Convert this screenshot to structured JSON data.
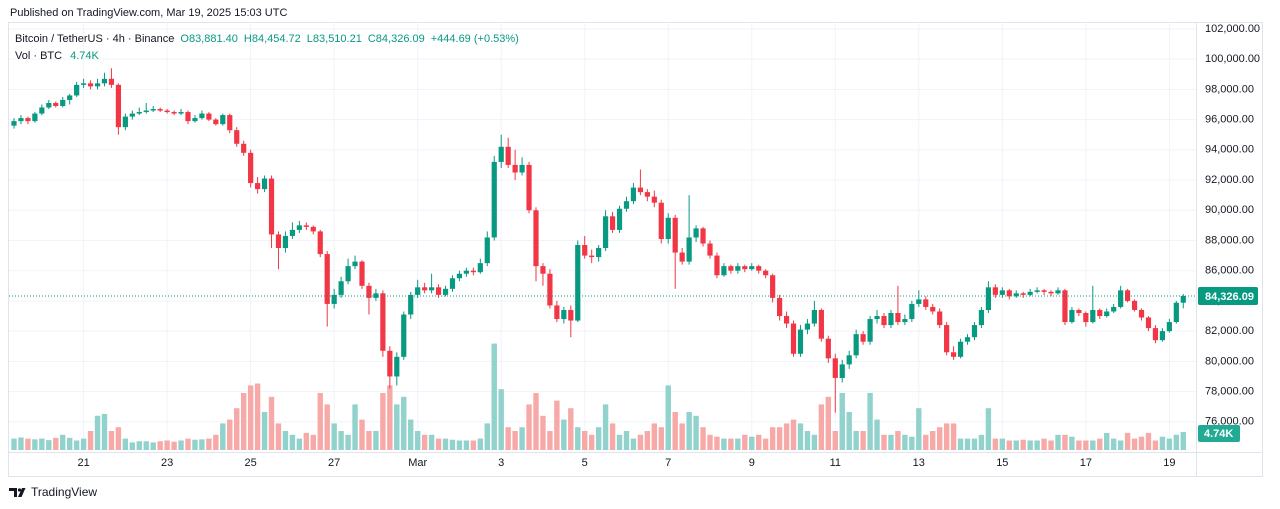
{
  "header": {
    "published": "Published on TradingView.com, Mar 19, 2025 15:03 UTC"
  },
  "footer": {
    "brand": "TradingView"
  },
  "chart_data": {
    "type": "candlestick",
    "legend": {
      "symbol": "Bitcoin / TetherUS · 4h · Binance",
      "open": "O83,881.40",
      "high": "H84,454.72",
      "low": "L83,510.21",
      "close": "C84,326.09",
      "change": "+444.69 (+0.53%)",
      "volume_title": "Vol · BTC",
      "volume_value": "4.74K"
    },
    "up_color": "#089981",
    "down_color": "#f23645",
    "volume_up_color": "#92d2cc",
    "volume_down_color": "#f7a9a7",
    "ylim": [
      74000,
      102460
    ],
    "yticks": [
      {
        "value": 76000,
        "label": "76,000.00"
      },
      {
        "value": 78000,
        "label": "78,000.00"
      },
      {
        "value": 80000,
        "label": "80,000.00"
      },
      {
        "value": 82000,
        "label": "82,000.00"
      },
      {
        "value": 84000,
        "label": "84,000.00"
      },
      {
        "value": 86000,
        "label": "86,000.00"
      },
      {
        "value": 88000,
        "label": "88,000.00"
      },
      {
        "value": 90000,
        "label": "90,000.00"
      },
      {
        "value": 92000,
        "label": "92,000.00"
      },
      {
        "value": 94000,
        "label": "94,000.00"
      },
      {
        "value": 96000,
        "label": "96,000.00"
      },
      {
        "value": 98000,
        "label": "98,000.00"
      },
      {
        "value": 100000,
        "label": "100,000.00"
      },
      {
        "value": 102000,
        "label": "102,000.00"
      }
    ],
    "xtick_labels": [
      "21",
      "23",
      "25",
      "27",
      "Mar",
      "3",
      "5",
      "7",
      "9",
      "11",
      "13",
      "15",
      "17",
      "19"
    ],
    "grid": true,
    "last_price": {
      "value": 84326.09,
      "label": "84,326.09"
    },
    "last_volume_label": "4.74K",
    "ohlc": [
      [
        95600,
        96100,
        95400,
        95900
      ],
      [
        95900,
        96300,
        95700,
        96100
      ],
      [
        96100,
        96200,
        95700,
        95900
      ],
      [
        95900,
        96500,
        95800,
        96400
      ],
      [
        96400,
        97000,
        96300,
        96800
      ],
      [
        96800,
        97300,
        96700,
        97100
      ],
      [
        97100,
        97200,
        96800,
        96900
      ],
      [
        96900,
        97500,
        96800,
        97300
      ],
      [
        97300,
        97700,
        97000,
        97600
      ],
      [
        97600,
        98500,
        97500,
        98300
      ],
      [
        98300,
        98700,
        98100,
        98400
      ],
      [
        98400,
        98600,
        98000,
        98200
      ],
      [
        98200,
        98700,
        98000,
        98400
      ],
      [
        98400,
        99100,
        98200,
        98700
      ],
      [
        98700,
        99400,
        98100,
        98300
      ],
      [
        98300,
        98400,
        95000,
        95500
      ],
      [
        95500,
        96400,
        95300,
        96200
      ],
      [
        96200,
        96600,
        96000,
        96400
      ],
      [
        96400,
        96800,
        96300,
        96500
      ],
      [
        96500,
        97100,
        96400,
        96600
      ],
      [
        96600,
        96900,
        96500,
        96700
      ],
      [
        96700,
        96800,
        96500,
        96600
      ],
      [
        96600,
        96700,
        96400,
        96500
      ],
      [
        96500,
        96600,
        96300,
        96400
      ],
      [
        96400,
        96700,
        96300,
        96500
      ],
      [
        96500,
        96600,
        95700,
        95900
      ],
      [
        95900,
        96300,
        95800,
        96100
      ],
      [
        96100,
        96600,
        96000,
        96400
      ],
      [
        96400,
        96500,
        95900,
        96000
      ],
      [
        96000,
        96100,
        95600,
        95700
      ],
      [
        95700,
        96400,
        95600,
        96300
      ],
      [
        96300,
        96400,
        95100,
        95300
      ],
      [
        95300,
        95500,
        94200,
        94400
      ],
      [
        94400,
        94600,
        93600,
        93800
      ],
      [
        93800,
        94000,
        91500,
        91800
      ],
      [
        91800,
        92200,
        91100,
        91400
      ],
      [
        91400,
        92300,
        91200,
        92100
      ],
      [
        92100,
        92300,
        87500,
        88400
      ],
      [
        88400,
        88600,
        86100,
        87500
      ],
      [
        87500,
        88600,
        87200,
        88300
      ],
      [
        88300,
        89200,
        88100,
        88700
      ],
      [
        88700,
        89300,
        88500,
        89000
      ],
      [
        89000,
        89200,
        88700,
        88900
      ],
      [
        88900,
        89000,
        88400,
        88600
      ],
      [
        88600,
        88700,
        86900,
        87100
      ],
      [
        87100,
        87300,
        82300,
        83800
      ],
      [
        83800,
        84800,
        83500,
        84400
      ],
      [
        84400,
        85600,
        84200,
        85300
      ],
      [
        85300,
        86800,
        85100,
        86300
      ],
      [
        86300,
        87000,
        86100,
        86600
      ],
      [
        86600,
        86700,
        84800,
        85000
      ],
      [
        85000,
        85200,
        83100,
        84200
      ],
      [
        84200,
        84800,
        84000,
        84500
      ],
      [
        84500,
        84700,
        80300,
        80700
      ],
      [
        80700,
        81000,
        78200,
        79000
      ],
      [
        79000,
        80600,
        78400,
        80300
      ],
      [
        80300,
        83300,
        80100,
        83100
      ],
      [
        83100,
        84600,
        82800,
        84400
      ],
      [
        84400,
        85400,
        84200,
        84900
      ],
      [
        84900,
        85200,
        84500,
        84700
      ],
      [
        84700,
        85800,
        84500,
        84900
      ],
      [
        84900,
        85100,
        84200,
        84400
      ],
      [
        84400,
        85000,
        84300,
        84800
      ],
      [
        84800,
        85700,
        84600,
        85500
      ],
      [
        85500,
        86000,
        85300,
        85800
      ],
      [
        85800,
        86200,
        85600,
        86000
      ],
      [
        86000,
        86200,
        85700,
        85900
      ],
      [
        85900,
        86800,
        85800,
        86500
      ],
      [
        86500,
        88600,
        86300,
        88200
      ],
      [
        88200,
        93600,
        88000,
        93200
      ],
      [
        93200,
        95000,
        92800,
        94200
      ],
      [
        94200,
        94800,
        92800,
        93000
      ],
      [
        93000,
        94000,
        92000,
        92500
      ],
      [
        92500,
        93500,
        92300,
        93000
      ],
      [
        93000,
        93200,
        89800,
        90000
      ],
      [
        90000,
        90200,
        85300,
        86300
      ],
      [
        86300,
        86500,
        85000,
        85800
      ],
      [
        85800,
        86100,
        83500,
        83700
      ],
      [
        83700,
        84000,
        82600,
        82800
      ],
      [
        82800,
        83600,
        82500,
        83400
      ],
      [
        83400,
        83700,
        81600,
        82700
      ],
      [
        82700,
        88000,
        82600,
        87700
      ],
      [
        87700,
        88300,
        86800,
        87000
      ],
      [
        87000,
        87400,
        86500,
        86900
      ],
      [
        86900,
        87700,
        86600,
        87500
      ],
      [
        87500,
        90000,
        87300,
        89600
      ],
      [
        89600,
        89900,
        88500,
        88700
      ],
      [
        88700,
        90300,
        88500,
        90100
      ],
      [
        90100,
        90900,
        89900,
        90600
      ],
      [
        90600,
        91800,
        90400,
        91500
      ],
      [
        91500,
        92700,
        91000,
        91200
      ],
      [
        91200,
        91400,
        90600,
        90900
      ],
      [
        90900,
        91300,
        90200,
        90500
      ],
      [
        90500,
        90700,
        87800,
        88100
      ],
      [
        88100,
        89800,
        87800,
        89500
      ],
      [
        89500,
        89700,
        84800,
        87200
      ],
      [
        87200,
        87500,
        86400,
        86600
      ],
      [
        86600,
        91000,
        86400,
        88200
      ],
      [
        88200,
        89000,
        87900,
        88800
      ],
      [
        88800,
        88900,
        87600,
        87800
      ],
      [
        87800,
        88000,
        86800,
        87000
      ],
      [
        87000,
        87200,
        85500,
        85700
      ],
      [
        85700,
        86500,
        85600,
        86300
      ],
      [
        86300,
        86400,
        85800,
        86000
      ],
      [
        86000,
        86500,
        85800,
        86300
      ],
      [
        86300,
        86400,
        85900,
        86100
      ],
      [
        86100,
        86500,
        86000,
        86300
      ],
      [
        86300,
        86400,
        85800,
        86000
      ],
      [
        86000,
        86100,
        85500,
        85700
      ],
      [
        85700,
        85800,
        83900,
        84200
      ],
      [
        84200,
        84400,
        82700,
        83000
      ],
      [
        83000,
        83300,
        82200,
        82500
      ],
      [
        82500,
        82700,
        80300,
        80500
      ],
      [
        80500,
        82400,
        80300,
        82100
      ],
      [
        82100,
        82800,
        81800,
        82500
      ],
      [
        82500,
        84000,
        82300,
        83400
      ],
      [
        83400,
        83500,
        81300,
        81500
      ],
      [
        81500,
        81700,
        79900,
        80200
      ],
      [
        80200,
        80500,
        76600,
        78900
      ],
      [
        78900,
        80100,
        78600,
        79800
      ],
      [
        79800,
        80700,
        79500,
        80400
      ],
      [
        80400,
        82100,
        80200,
        81800
      ],
      [
        81800,
        82000,
        81100,
        81300
      ],
      [
        81300,
        83000,
        81100,
        82800
      ],
      [
        82800,
        83400,
        82500,
        83000
      ],
      [
        83000,
        83200,
        82200,
        82400
      ],
      [
        82400,
        83400,
        82200,
        83200
      ],
      [
        83200,
        85000,
        82400,
        82600
      ],
      [
        82600,
        83100,
        82400,
        82800
      ],
      [
        82800,
        84000,
        82600,
        83800
      ],
      [
        83800,
        84700,
        83600,
        84100
      ],
      [
        84100,
        84300,
        83400,
        83600
      ],
      [
        83600,
        83800,
        83100,
        83300
      ],
      [
        83300,
        83500,
        82200,
        82400
      ],
      [
        82400,
        82600,
        80400,
        80600
      ],
      [
        80600,
        81000,
        80100,
        80300
      ],
      [
        80300,
        81500,
        80200,
        81300
      ],
      [
        81300,
        81800,
        81100,
        81600
      ],
      [
        81600,
        82600,
        81400,
        82400
      ],
      [
        82400,
        83600,
        82200,
        83400
      ],
      [
        83400,
        85300,
        83200,
        84900
      ],
      [
        84900,
        85100,
        84200,
        84400
      ],
      [
        84400,
        84900,
        84200,
        84700
      ],
      [
        84700,
        84800,
        84100,
        84300
      ],
      [
        84300,
        84700,
        84200,
        84500
      ],
      [
        84500,
        84600,
        84200,
        84400
      ],
      [
        84400,
        84800,
        84300,
        84600
      ],
      [
        84600,
        84900,
        84500,
        84700
      ],
      [
        84700,
        84800,
        84400,
        84600
      ],
      [
        84600,
        84700,
        84300,
        84500
      ],
      [
        84500,
        84900,
        84400,
        84700
      ],
      [
        84700,
        84800,
        82400,
        82600
      ],
      [
        82600,
        83600,
        82500,
        83400
      ],
      [
        83400,
        83500,
        83000,
        83200
      ],
      [
        83200,
        83300,
        82300,
        82600
      ],
      [
        82600,
        85000,
        82500,
        83400
      ],
      [
        83400,
        83500,
        82800,
        83000
      ],
      [
        83000,
        83500,
        82900,
        83300
      ],
      [
        83300,
        83800,
        83200,
        83600
      ],
      [
        83600,
        85000,
        83500,
        84700
      ],
      [
        84700,
        84800,
        83900,
        84000
      ],
      [
        84000,
        84100,
        83300,
        83400
      ],
      [
        83400,
        83500,
        82700,
        82900
      ],
      [
        82900,
        83000,
        82000,
        82200
      ],
      [
        82200,
        82400,
        81200,
        81400
      ],
      [
        81400,
        82200,
        81300,
        82000
      ],
      [
        82000,
        82800,
        81900,
        82600
      ],
      [
        82600,
        84000,
        82500,
        83880
      ],
      [
        83881.4,
        84454.72,
        83510.21,
        84326.09
      ]
    ],
    "volumes": [
      3000,
      3300,
      3000,
      2800,
      3000,
      2600,
      3200,
      4000,
      3200,
      2500,
      3000,
      5000,
      9000,
      9500,
      5000,
      6000,
      3000,
      2000,
      2300,
      2300,
      2000,
      2300,
      2500,
      2200,
      2500,
      3000,
      2700,
      2800,
      3000,
      4000,
      7000,
      8000,
      11000,
      15000,
      17000,
      17500,
      10000,
      14000,
      7000,
      5000,
      4000,
      3000,
      4500,
      4000,
      15000,
      12000,
      7000,
      5000,
      4000,
      12000,
      8000,
      5000,
      5000,
      15000,
      17000,
      12000,
      14000,
      8000,
      5000,
      4000,
      4000,
      3000,
      3000,
      2700,
      2500,
      2500,
      2500,
      3000,
      7000,
      28000,
      16000,
      6000,
      5000,
      6000,
      12000,
      15000,
      9000,
      5000,
      13000,
      8000,
      11000,
      6000,
      5000,
      4000,
      6000,
      12000,
      7000,
      4000,
      5000,
      3000,
      4000,
      5000,
      7000,
      6000,
      17000,
      10000,
      7000,
      10000,
      9000,
      6000,
      4000,
      3500,
      3000,
      3000,
      3000,
      4000,
      3500,
      4000,
      3000,
      6000,
      6000,
      7000,
      8000,
      7000,
      5000,
      4000,
      12000,
      14000,
      5000,
      15000,
      10000,
      5000,
      5000,
      15000,
      8000,
      4000,
      4000,
      5000,
      4000,
      3500,
      11000,
      4000,
      5000,
      6000,
      7000,
      7000,
      3000,
      3000,
      3000,
      4000,
      11000,
      3000,
      3000,
      2500,
      2500,
      2700,
      2500,
      2500,
      3000,
      2500,
      4000,
      4000,
      3500,
      2500,
      2500,
      2500,
      3000,
      4500,
      3000,
      2500,
      4500,
      3000,
      3500,
      4500,
      2500,
      3500,
      3000,
      4000,
      4740
    ]
  }
}
